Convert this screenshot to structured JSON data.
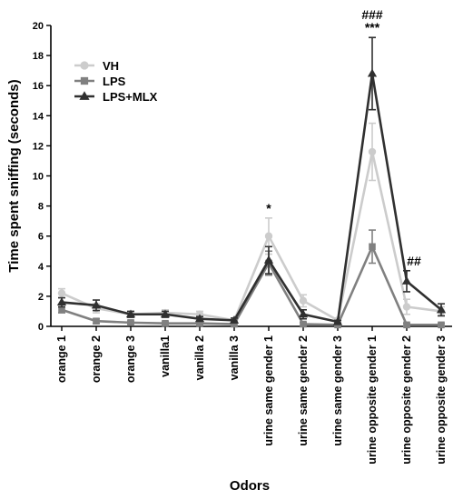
{
  "chart_data": {
    "type": "line",
    "xlabel": "Odors",
    "ylabel": "Time spent sniffing (seconds)",
    "ylim": [
      0,
      20
    ],
    "yticks": [
      0,
      2,
      4,
      6,
      8,
      10,
      12,
      14,
      16,
      18,
      20
    ],
    "categories": [
      "orange 1",
      "orange 2",
      "orange 3",
      "vanilla1",
      "vanilla 2",
      "vanilla 3",
      "urine same gender 1",
      "urine same gender 2",
      "urine same gender 3",
      "urine opposite gender 1",
      "urine opposite gender 2",
      "urine opposite gender 3"
    ],
    "series": [
      {
        "name": "VH",
        "color": "#cccccc",
        "marker": "circle",
        "values": [
          2.2,
          1.2,
          0.8,
          0.9,
          0.8,
          0.4,
          6.0,
          1.7,
          0.4,
          11.6,
          1.3,
          1.0
        ],
        "errors": [
          0.3,
          0.3,
          0.2,
          0.2,
          0.2,
          0.15,
          1.2,
          0.4,
          0.15,
          1.9,
          0.5,
          0.3
        ]
      },
      {
        "name": "LPS",
        "color": "#808080",
        "marker": "square",
        "values": [
          1.1,
          0.35,
          0.25,
          0.2,
          0.2,
          0.15,
          4.2,
          0.15,
          0.1,
          5.3,
          0.1,
          0.1
        ],
        "errors": [
          0.2,
          0.15,
          0.1,
          0.1,
          0.1,
          0.1,
          0.8,
          0.1,
          0.1,
          1.1,
          0.1,
          0.1
        ]
      },
      {
        "name": "LPS+MLX",
        "color": "#303030",
        "marker": "triangle",
        "values": [
          1.6,
          1.4,
          0.8,
          0.8,
          0.5,
          0.4,
          4.4,
          0.8,
          0.3,
          16.8,
          3.0,
          1.1
        ],
        "errors": [
          0.3,
          0.35,
          0.2,
          0.2,
          0.15,
          0.15,
          0.9,
          0.3,
          0.1,
          2.4,
          0.7,
          0.4
        ]
      }
    ],
    "annotations": [
      {
        "category_index": 6,
        "lines": [
          "*"
        ]
      },
      {
        "category_index": 9,
        "lines": [
          "###",
          "***"
        ]
      },
      {
        "category_index": 10,
        "lines": [
          "##"
        ]
      }
    ],
    "legend": {
      "placement": "top-left",
      "items": [
        "VH",
        "LPS",
        "LPS+MLX"
      ]
    },
    "grid": false
  }
}
